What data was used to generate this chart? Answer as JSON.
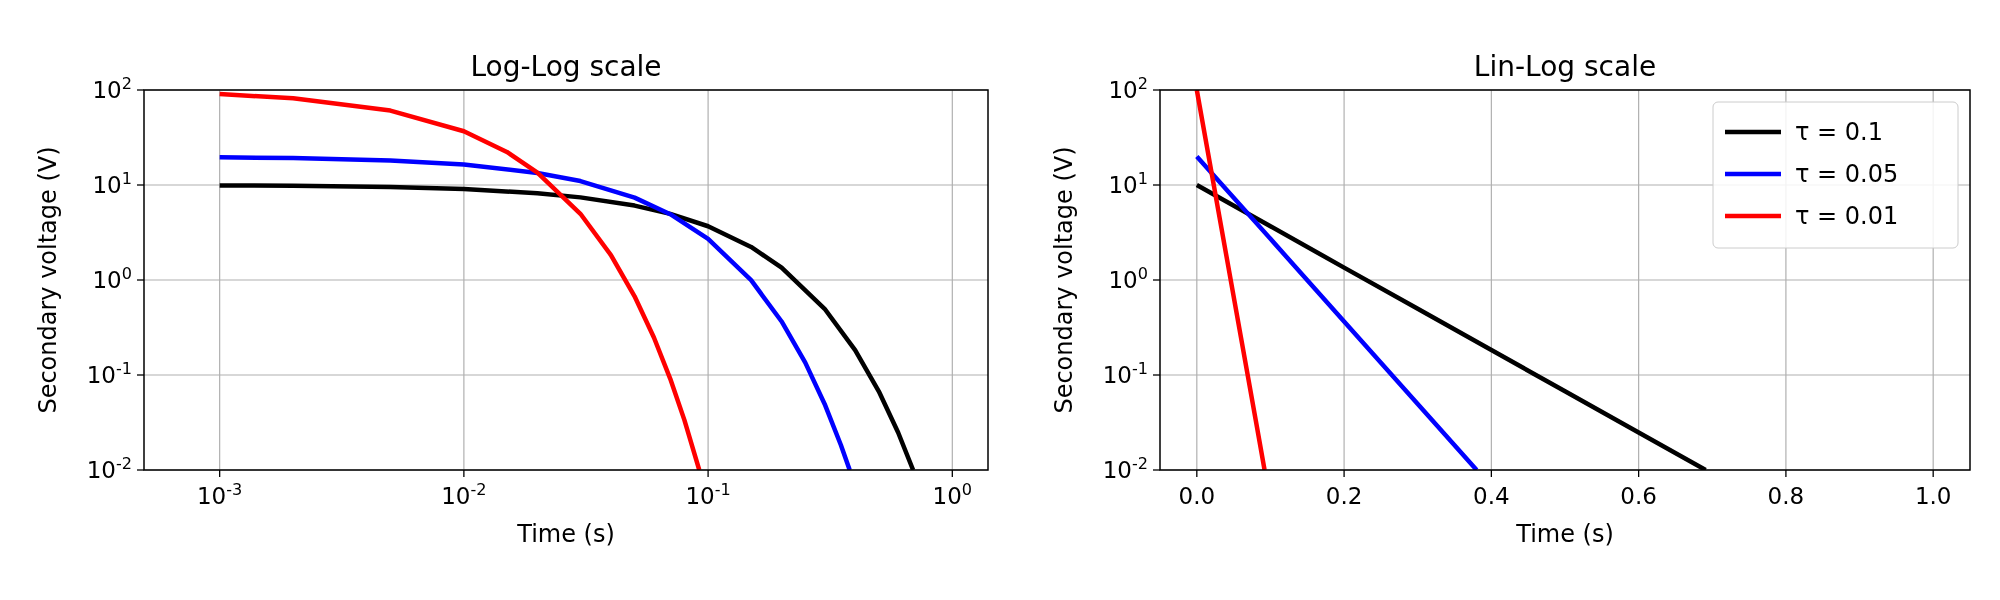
{
  "chart_data": [
    {
      "type": "line",
      "title": "Log-Log scale",
      "xlabel": "Time (s)",
      "ylabel": "Secondary voltage (V)",
      "log": "xy",
      "grid": true,
      "xlim": [
        0.00049,
        1.4
      ],
      "xticks": [
        {
          "value": 0.001,
          "label": "10$^{-3}$"
        },
        {
          "value": 0.01,
          "label": "10$^{-2}$"
        },
        {
          "value": 0.1,
          "label": "10$^{-1}$"
        },
        {
          "value": 1,
          "label": "10$^{0}$"
        }
      ],
      "ylim": [
        0.01,
        100
      ],
      "yticks": [
        {
          "value": 0.01,
          "label": "10$^{-2}$"
        },
        {
          "value": 0.1,
          "label": "10$^{-1}$"
        },
        {
          "value": 1,
          "label": "10$^{0}$"
        },
        {
          "value": 10,
          "label": "10$^{1}$"
        },
        {
          "value": 100,
          "label": "10$^{2}$"
        }
      ],
      "series": [
        {
          "color": "#000000",
          "x": [
            0.001,
            0.002,
            0.005,
            0.01,
            0.02,
            0.03,
            0.05,
            0.07,
            0.1,
            0.15,
            0.2,
            0.3,
            0.4,
            0.5,
            0.6,
            0.691
          ],
          "values": [
            9.9,
            9.8,
            9.51,
            9.05,
            8.19,
            7.41,
            6.07,
            4.97,
            3.68,
            2.23,
            1.35,
            0.498,
            0.183,
            0.0674,
            0.0248,
            0.01
          ]
        },
        {
          "color": "#0000ff",
          "x": [
            0.001,
            0.002,
            0.005,
            0.01,
            0.02,
            0.03,
            0.05,
            0.07,
            0.1,
            0.15,
            0.2,
            0.25,
            0.3,
            0.35,
            0.38
          ],
          "values": [
            19.6,
            19.2,
            18.1,
            16.4,
            13.4,
            11,
            7.36,
            4.93,
            2.71,
            0.996,
            0.366,
            0.135,
            0.0496,
            0.0182,
            0.01
          ]
        },
        {
          "color": "#ff0000",
          "x": [
            0.001,
            0.002,
            0.005,
            0.01,
            0.015,
            0.02,
            0.03,
            0.04,
            0.05,
            0.06,
            0.07,
            0.08,
            0.092
          ],
          "values": [
            90.5,
            81.9,
            60.7,
            36.8,
            22.3,
            13.5,
            4.98,
            1.83,
            0.674,
            0.248,
            0.0912,
            0.0335,
            0.01
          ]
        }
      ]
    },
    {
      "type": "line",
      "title": "Lin-Log scale",
      "xlabel": "Time (s)",
      "ylabel": "Secondary voltage (V)",
      "log": "y",
      "grid": true,
      "legend": "top right",
      "xlim": [
        -0.05,
        1.05
      ],
      "xticks": [
        {
          "value": 0,
          "label": "0.0"
        },
        0.2,
        0.4,
        0.6,
        0.8,
        {
          "value": 1,
          "label": "1.0"
        }
      ],
      "ylim": [
        0.01,
        100
      ],
      "yticks": [
        {
          "value": 0.01,
          "label": "10$^{-2}$"
        },
        {
          "value": 0.1,
          "label": "10$^{-1}$"
        },
        {
          "value": 1,
          "label": "10$^{0}$"
        },
        {
          "value": 10,
          "label": "10$^{1}$"
        },
        {
          "value": 100,
          "label": "10$^{2}$"
        }
      ],
      "series": [
        {
          "name": "τ = 0.1",
          "color": "#000000",
          "x": [
            0,
            0.1,
            0.2,
            0.3,
            0.4,
            0.5,
            0.6,
            0.691
          ],
          "values": [
            10,
            3.68,
            1.35,
            0.498,
            0.183,
            0.0674,
            0.0248,
            0.01
          ]
        },
        {
          "name": "τ = 0.05",
          "color": "#0000ff",
          "x": [
            0,
            0.1,
            0.2,
            0.3,
            0.38
          ],
          "values": [
            20,
            2.71,
            0.366,
            0.0496,
            0.01
          ]
        },
        {
          "name": "τ = 0.01",
          "color": "#ff0000",
          "x": [
            0,
            0.02,
            0.04,
            0.06,
            0.08,
            0.092
          ],
          "values": [
            100,
            13.5,
            1.83,
            0.248,
            0.0335,
            0.01
          ]
        }
      ]
    }
  ]
}
